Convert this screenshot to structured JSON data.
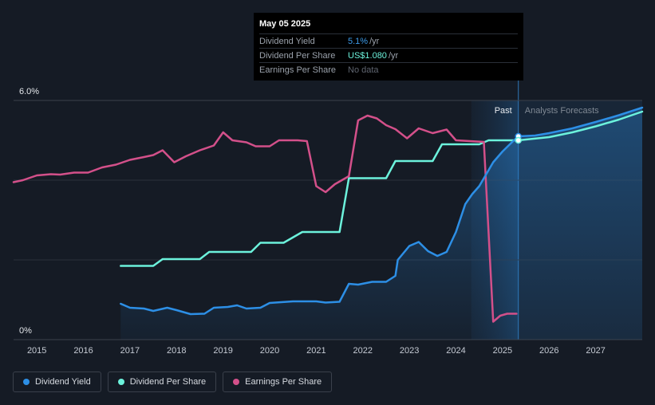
{
  "colors": {
    "dividend_yield": "#2d8fe6",
    "dividend_per_share": "#6cf2dc",
    "earnings_per_share": "#d3508a",
    "background": "#151b25",
    "forecast_band": "#1c2f47"
  },
  "tooltip": {
    "date": "May 05 2025",
    "rows": [
      {
        "label": "Dividend Yield",
        "value": "5.1%",
        "unit": "/yr"
      },
      {
        "label": "Dividend Per Share",
        "value": "US$1.080",
        "unit": "/yr"
      },
      {
        "label": "Earnings Per Share",
        "value": "No data",
        "unit": ""
      }
    ]
  },
  "legend": [
    {
      "label": "Dividend Yield",
      "color_key": "dividend_yield"
    },
    {
      "label": "Dividend Per Share",
      "color_key": "dividend_per_share"
    },
    {
      "label": "Earnings Per Share",
      "color_key": "earnings_per_share"
    }
  ],
  "chart_data": {
    "type": "line",
    "title": "",
    "xlabel": "",
    "ylabel": "",
    "x_ticks": [
      "2015",
      "2016",
      "2017",
      "2018",
      "2019",
      "2020",
      "2021",
      "2022",
      "2023",
      "2024",
      "2025",
      "2026",
      "2027"
    ],
    "xlim": [
      2014.5,
      2028.0
    ],
    "ylim": [
      0,
      6.0
    ],
    "y_tick_labels": [
      {
        "value": 6.0,
        "label": "6.0%"
      },
      {
        "value": 0,
        "label": "0%"
      }
    ],
    "gridlines": [
      2,
      4
    ],
    "grid": true,
    "region_labels": {
      "past": "Past",
      "forecast": "Analysts Forecasts"
    },
    "past_region": [
      2024.33,
      2025.34
    ],
    "forecast_start": 2025.34,
    "legend_position": "bottom-left",
    "series": [
      {
        "name": "Dividend Yield",
        "key": "dividend_yield",
        "area": true,
        "points": [
          [
            2016.8,
            0.9
          ],
          [
            2017.0,
            0.8
          ],
          [
            2017.3,
            0.78
          ],
          [
            2017.5,
            0.72
          ],
          [
            2017.8,
            0.8
          ],
          [
            2018.0,
            0.74
          ],
          [
            2018.3,
            0.64
          ],
          [
            2018.6,
            0.65
          ],
          [
            2018.8,
            0.8
          ],
          [
            2019.1,
            0.82
          ],
          [
            2019.3,
            0.86
          ],
          [
            2019.5,
            0.78
          ],
          [
            2019.8,
            0.8
          ],
          [
            2020.0,
            0.92
          ],
          [
            2020.5,
            0.96
          ],
          [
            2021.0,
            0.96
          ],
          [
            2021.2,
            0.93
          ],
          [
            2021.5,
            0.95
          ],
          [
            2021.7,
            1.4
          ],
          [
            2021.9,
            1.38
          ],
          [
            2022.2,
            1.45
          ],
          [
            2022.5,
            1.45
          ],
          [
            2022.7,
            1.6
          ],
          [
            2022.75,
            2.0
          ],
          [
            2023.0,
            2.35
          ],
          [
            2023.2,
            2.45
          ],
          [
            2023.4,
            2.22
          ],
          [
            2023.6,
            2.1
          ],
          [
            2023.8,
            2.2
          ],
          [
            2024.0,
            2.7
          ],
          [
            2024.2,
            3.4
          ],
          [
            2024.35,
            3.65
          ],
          [
            2024.5,
            3.85
          ],
          [
            2024.8,
            4.45
          ],
          [
            2025.0,
            4.72
          ],
          [
            2025.2,
            4.95
          ],
          [
            2025.34,
            5.1
          ]
        ]
      },
      {
        "name": "Dividend Per Share",
        "key": "dividend_per_share",
        "area": false,
        "points": [
          [
            2016.8,
            1.85
          ],
          [
            2017.5,
            1.85
          ],
          [
            2017.7,
            2.02
          ],
          [
            2018.5,
            2.02
          ],
          [
            2018.7,
            2.2
          ],
          [
            2019.6,
            2.2
          ],
          [
            2019.8,
            2.43
          ],
          [
            2020.3,
            2.43
          ],
          [
            2020.7,
            2.7
          ],
          [
            2021.5,
            2.7
          ],
          [
            2021.7,
            4.05
          ],
          [
            2022.5,
            4.05
          ],
          [
            2022.7,
            4.48
          ],
          [
            2023.5,
            4.48
          ],
          [
            2023.7,
            4.9
          ],
          [
            2024.5,
            4.9
          ],
          [
            2024.7,
            5.0
          ],
          [
            2025.34,
            5.0
          ],
          [
            2026.0,
            5.08
          ],
          [
            2026.5,
            5.2
          ],
          [
            2027.0,
            5.35
          ],
          [
            2027.5,
            5.52
          ],
          [
            2028.0,
            5.72
          ]
        ]
      },
      {
        "name": "Dividend Yield forecast",
        "key": "dividend_yield",
        "area": true,
        "points": [
          [
            2025.34,
            5.1
          ],
          [
            2025.7,
            5.12
          ],
          [
            2026.0,
            5.18
          ],
          [
            2026.5,
            5.3
          ],
          [
            2027.0,
            5.46
          ],
          [
            2027.5,
            5.63
          ],
          [
            2028.0,
            5.82
          ]
        ]
      },
      {
        "name": "Earnings Per Share",
        "key": "earnings_per_share",
        "area": false,
        "points": [
          [
            2014.5,
            3.95
          ],
          [
            2014.7,
            4.0
          ],
          [
            2015.0,
            4.12
          ],
          [
            2015.3,
            4.15
          ],
          [
            2015.5,
            4.14
          ],
          [
            2015.8,
            4.19
          ],
          [
            2016.1,
            4.19
          ],
          [
            2016.4,
            4.32
          ],
          [
            2016.7,
            4.39
          ],
          [
            2017.0,
            4.51
          ],
          [
            2017.3,
            4.58
          ],
          [
            2017.5,
            4.63
          ],
          [
            2017.7,
            4.75
          ],
          [
            2017.95,
            4.45
          ],
          [
            2018.2,
            4.6
          ],
          [
            2018.5,
            4.75
          ],
          [
            2018.8,
            4.87
          ],
          [
            2019.0,
            5.2
          ],
          [
            2019.2,
            5.0
          ],
          [
            2019.5,
            4.95
          ],
          [
            2019.7,
            4.85
          ],
          [
            2020.0,
            4.85
          ],
          [
            2020.2,
            5.0
          ],
          [
            2020.6,
            5.0
          ],
          [
            2020.8,
            4.98
          ],
          [
            2021.0,
            3.85
          ],
          [
            2021.2,
            3.7
          ],
          [
            2021.4,
            3.9
          ],
          [
            2021.7,
            4.1
          ],
          [
            2021.9,
            5.5
          ],
          [
            2022.1,
            5.62
          ],
          [
            2022.3,
            5.55
          ],
          [
            2022.5,
            5.38
          ],
          [
            2022.7,
            5.28
          ],
          [
            2022.95,
            5.05
          ],
          [
            2023.2,
            5.3
          ],
          [
            2023.5,
            5.18
          ],
          [
            2023.8,
            5.27
          ],
          [
            2024.0,
            5.0
          ],
          [
            2024.3,
            4.98
          ],
          [
            2024.6,
            4.96
          ],
          [
            2024.8,
            0.45
          ],
          [
            2024.95,
            0.6
          ],
          [
            2025.1,
            0.65
          ],
          [
            2025.3,
            0.65
          ]
        ]
      }
    ],
    "markers": [
      {
        "series": "Dividend Yield",
        "x": 2025.34,
        "y": 5.1
      },
      {
        "series": "Dividend Per Share",
        "x": 2025.34,
        "y": 5.0
      }
    ]
  }
}
